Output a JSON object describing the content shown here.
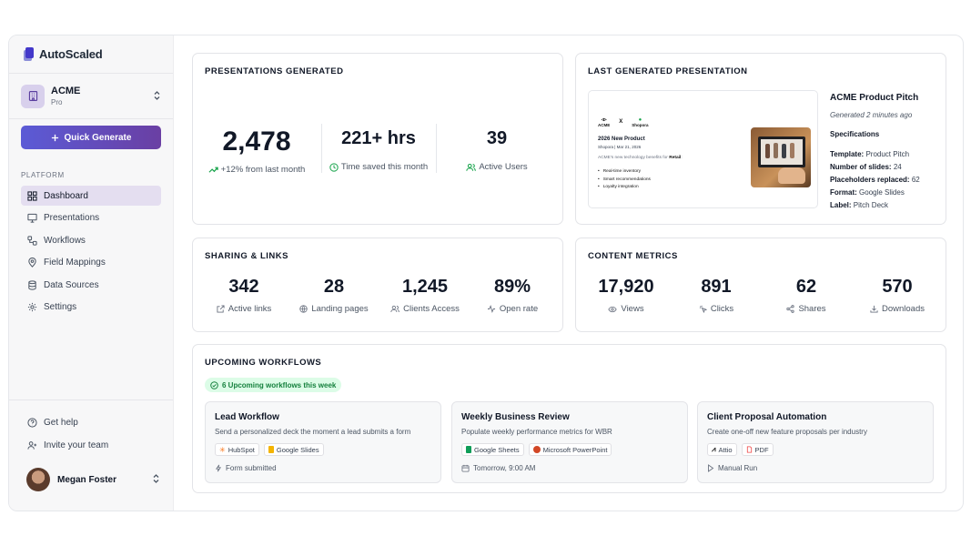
{
  "brand": {
    "name": "AutoScaled"
  },
  "org": {
    "name": "ACME",
    "plan": "Pro"
  },
  "quick_generate": {
    "label": "Quick Generate"
  },
  "sidebar": {
    "section": "PLATFORM",
    "items": [
      {
        "label": "Dashboard",
        "icon": "grid-icon",
        "active": true
      },
      {
        "label": "Presentations",
        "icon": "monitor-icon"
      },
      {
        "label": "Workflows",
        "icon": "workflow-icon"
      },
      {
        "label": "Field Mappings",
        "icon": "pin-icon"
      },
      {
        "label": "Data Sources",
        "icon": "database-icon"
      },
      {
        "label": "Settings",
        "icon": "gear-icon"
      }
    ],
    "bottom": [
      {
        "label": "Get help",
        "icon": "help-icon"
      },
      {
        "label": "Invite your team",
        "icon": "user-plus-icon"
      }
    ],
    "user": {
      "name": "Megan Foster"
    }
  },
  "presentations": {
    "title": "PRESENTATIONS GENERATED",
    "stats": [
      {
        "value": "2,478",
        "label": "+12% from last month"
      },
      {
        "value": "221+ hrs",
        "label": "Time saved this month"
      },
      {
        "value": "39",
        "label": "Active Users"
      }
    ]
  },
  "last_presentation": {
    "title": "LAST GENERATED PRESENTATION",
    "slide": {
      "logo_left": "ACME",
      "cross": "X",
      "logo_right": "Shopora",
      "heading": "2026 New Product",
      "meta": "Shopora  |  Mar 21, 2026",
      "desc_prefix": "ACME's new technology benefits for ",
      "desc_strong": "Retail",
      "desc_suffix": ":",
      "bullets": [
        "Real-time inventory",
        "Smart recommendations",
        "Loyalty integration"
      ]
    },
    "name": "ACME Product Pitch",
    "generated": "Generated 2 minutes ago",
    "spec_heading": "Specifications",
    "specs": [
      {
        "key": "Template:",
        "value": "Product Pitch"
      },
      {
        "key": "Number of slides:",
        "value": "24"
      },
      {
        "key": "Placeholders replaced:",
        "value": "62"
      },
      {
        "key": "Format:",
        "value": "Google Slides"
      },
      {
        "key": "Label:",
        "value": "Pitch Deck"
      }
    ]
  },
  "sharing": {
    "title": "SHARING & LINKS",
    "metrics": [
      {
        "value": "342",
        "label": "Active links",
        "icon": "external-link-icon"
      },
      {
        "value": "28",
        "label": "Landing pages",
        "icon": "globe-icon"
      },
      {
        "value": "1,245",
        "label": "Clients Access",
        "icon": "users-icon"
      },
      {
        "value": "89%",
        "label": "Open rate",
        "icon": "activity-icon"
      }
    ]
  },
  "content_metrics": {
    "title": "CONTENT METRICS",
    "metrics": [
      {
        "value": "17,920",
        "label": "Views",
        "icon": "eye-icon"
      },
      {
        "value": "891",
        "label": "Clicks",
        "icon": "click-icon"
      },
      {
        "value": "62",
        "label": "Shares",
        "icon": "share-icon"
      },
      {
        "value": "570",
        "label": "Downloads",
        "icon": "download-icon"
      }
    ]
  },
  "workflows": {
    "title": "UPCOMING WORKFLOWS",
    "badge": "6 Upcoming workflows this week",
    "items": [
      {
        "name": "Lead Workflow",
        "desc": "Send a personalized deck the moment a lead submits a form",
        "tags": [
          {
            "label": "HubSpot",
            "icon": "hubspot-icon"
          },
          {
            "label": "Google Slides",
            "icon": "google-slides-icon"
          }
        ],
        "trigger": "Form submitted",
        "trigger_icon": "bolt-icon"
      },
      {
        "name": "Weekly Business Review",
        "desc": "Populate weekly performance metrics for WBR",
        "tags": [
          {
            "label": "Google Sheets",
            "icon": "google-sheets-icon"
          },
          {
            "label": "Microsoft PowerPoint",
            "icon": "powerpoint-icon"
          }
        ],
        "trigger": "Tomorrow, 9:00 AM",
        "trigger_icon": "calendar-icon"
      },
      {
        "name": "Client Proposal Automation",
        "desc": "Create one-off new feature proposals per industry",
        "tags": [
          {
            "label": "Attio",
            "icon": "attio-icon"
          },
          {
            "label": "PDF",
            "icon": "pdf-icon"
          }
        ],
        "trigger": "Manual Run",
        "trigger_icon": "play-icon"
      }
    ]
  },
  "colors": {
    "accent": "#5b5bd6",
    "accent_end": "#6a3fa3",
    "success": "#16a34a",
    "active_nav": "#e4def0"
  }
}
